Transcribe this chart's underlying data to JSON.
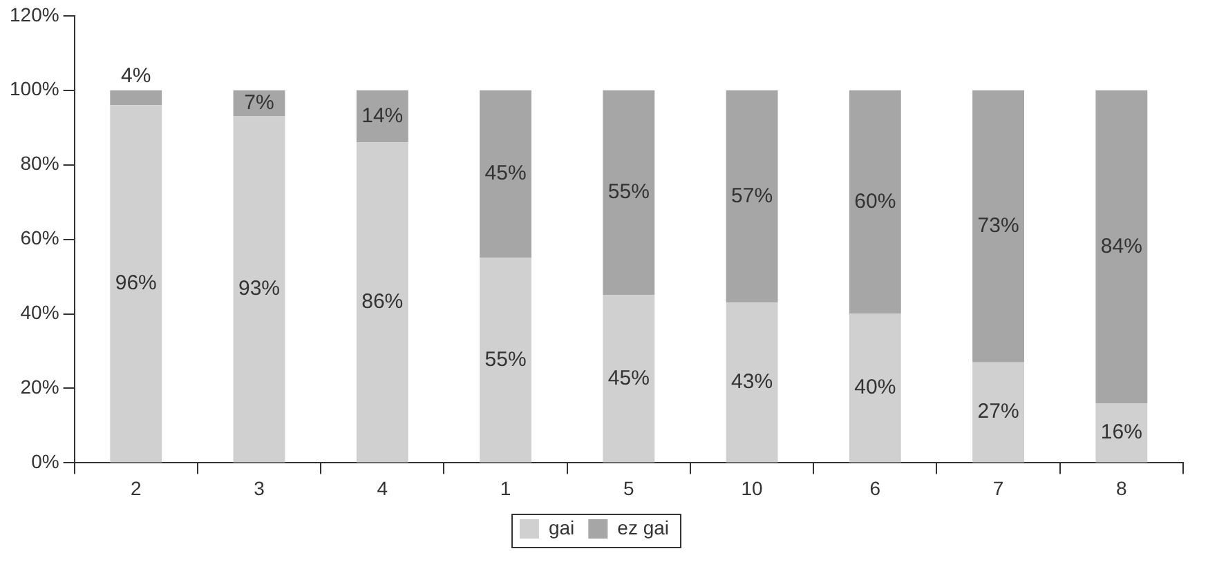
{
  "chart_data": {
    "type": "bar",
    "stacked": true,
    "categories": [
      "2",
      "3",
      "4",
      "1",
      "5",
      "10",
      "6",
      "7",
      "8"
    ],
    "series": [
      {
        "name": "gai",
        "color": "#d0d0d0",
        "values": [
          96,
          93,
          86,
          55,
          45,
          43,
          40,
          27,
          16
        ],
        "value_labels": [
          "96%",
          "93%",
          "86%",
          "55%",
          "45%",
          "43%",
          "40%",
          "27%",
          "16%"
        ]
      },
      {
        "name": "ez gai",
        "color": "#a6a6a6",
        "values": [
          4,
          7,
          14,
          45,
          55,
          57,
          60,
          73,
          84
        ],
        "value_labels": [
          "4%",
          "7%",
          "14%",
          "45%",
          "55%",
          "57%",
          "60%",
          "73%",
          "84%"
        ]
      }
    ],
    "ylim": [
      0,
      120
    ],
    "yticks": [
      {
        "value": 0,
        "label": "0%"
      },
      {
        "value": 20,
        "label": "20%"
      },
      {
        "value": 40,
        "label": "40%"
      },
      {
        "value": 60,
        "label": "60%"
      },
      {
        "value": 80,
        "label": "80%"
      },
      {
        "value": 100,
        "label": "100%"
      },
      {
        "value": 120,
        "label": "120%"
      }
    ],
    "grid": false,
    "legend": "bottom"
  }
}
